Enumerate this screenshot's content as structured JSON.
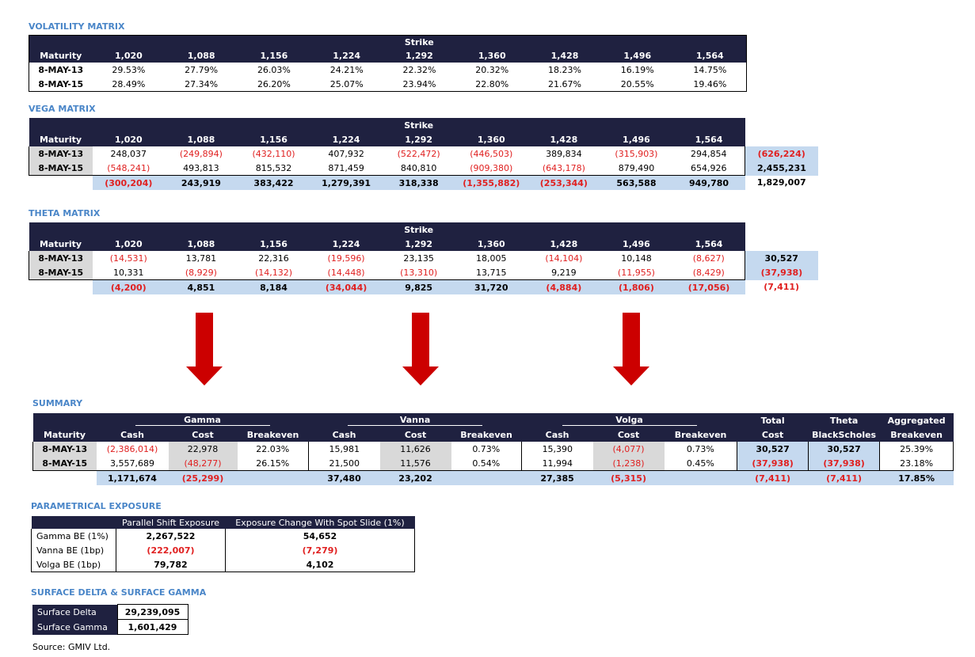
{
  "vol": {
    "title": "VOLATILITY MATRIX",
    "strike_label": "Strike",
    "maturity_label": "Maturity",
    "strikes": [
      "1,020",
      "1,088",
      "1,156",
      "1,224",
      "1,292",
      "1,360",
      "1,428",
      "1,496",
      "1,564"
    ],
    "rows": [
      {
        "label": "8-MAY-13",
        "cells": [
          "29.53%",
          "27.79%",
          "26.03%",
          "24.21%",
          "22.32%",
          "20.32%",
          "18.23%",
          "16.19%",
          "14.75%"
        ]
      },
      {
        "label": "8-MAY-15",
        "cells": [
          "28.49%",
          "27.34%",
          "26.20%",
          "25.07%",
          "23.94%",
          "22.80%",
          "21.67%",
          "20.55%",
          "19.46%"
        ]
      }
    ]
  },
  "vega": {
    "title": "VEGA MATRIX",
    "strike_label": "Strike",
    "maturity_label": "Maturity",
    "strikes": [
      "1,020",
      "1,088",
      "1,156",
      "1,224",
      "1,292",
      "1,360",
      "1,428",
      "1,496",
      "1,564"
    ],
    "rows": [
      {
        "label": "8-MAY-13",
        "cells": [
          "248,037",
          "(249,894)",
          "(432,110)",
          "407,932",
          "(522,472)",
          "(446,503)",
          "389,834",
          "(315,903)",
          "294,854"
        ],
        "total": "(626,224)"
      },
      {
        "label": "8-MAY-15",
        "cells": [
          "(548,241)",
          "493,813",
          "815,532",
          "871,459",
          "840,810",
          "(909,380)",
          "(643,178)",
          "879,490",
          "654,926"
        ],
        "total": "2,455,231"
      }
    ],
    "totals": [
      "(300,204)",
      "243,919",
      "383,422",
      "1,279,391",
      "318,338",
      "(1,355,882)",
      "(253,344)",
      "563,588",
      "949,780"
    ],
    "grand_total": "1,829,007"
  },
  "theta": {
    "title": "THETA MATRIX",
    "strike_label": "Strike",
    "maturity_label": "Maturity",
    "strikes": [
      "1,020",
      "1,088",
      "1,156",
      "1,224",
      "1,292",
      "1,360",
      "1,428",
      "1,496",
      "1,564"
    ],
    "rows": [
      {
        "label": "8-MAY-13",
        "cells": [
          "(14,531)",
          "13,781",
          "22,316",
          "(19,596)",
          "23,135",
          "18,005",
          "(14,104)",
          "10,148",
          "(8,627)"
        ],
        "total": "30,527"
      },
      {
        "label": "8-MAY-15",
        "cells": [
          "10,331",
          "(8,929)",
          "(14,132)",
          "(14,448)",
          "(13,310)",
          "13,715",
          "9,219",
          "(11,955)",
          "(8,429)"
        ],
        "total": "(37,938)"
      }
    ],
    "totals": [
      "(4,200)",
      "4,851",
      "8,184",
      "(34,044)",
      "9,825",
      "31,720",
      "(4,884)",
      "(1,806)",
      "(17,056)"
    ],
    "grand_total": "(7,411)"
  },
  "summary": {
    "title": "SUMMARY",
    "maturity_label": "Maturity",
    "groups": [
      "Gamma",
      "Vanna",
      "Volga"
    ],
    "sub": [
      "Cash",
      "Cost",
      "Breakeven"
    ],
    "extra_headers": [
      [
        "Total",
        "Cost"
      ],
      [
        "Theta",
        "BlackScholes"
      ],
      [
        "Aggregated",
        "Breakeven"
      ]
    ],
    "rows": [
      {
        "label": "8-MAY-13",
        "cells": [
          "(2,386,014)",
          "22,978",
          "22.03%",
          "15,981",
          "11,626",
          "0.73%",
          "15,390",
          "(4,077)",
          "0.73%",
          "30,527",
          "30,527",
          "25.39%"
        ]
      },
      {
        "label": "8-MAY-15",
        "cells": [
          "3,557,689",
          "(48,277)",
          "26.15%",
          "21,500",
          "11,576",
          "0.54%",
          "11,994",
          "(1,238)",
          "0.45%",
          "(37,938)",
          "(37,938)",
          "23.18%"
        ]
      }
    ],
    "totals": [
      "1,171,674",
      "(25,299)",
      "",
      "37,480",
      "23,202",
      "",
      "27,385",
      "(5,315)",
      "",
      "(7,411)",
      "(7,411)",
      "17.85%"
    ]
  },
  "param": {
    "title": "PARAMETRICAL EXPOSURE",
    "headers": [
      "Parallel Shift Exposure",
      "Exposure Change With Spot Slide (1%)"
    ],
    "rows": [
      {
        "label": "Gamma BE (1%)",
        "a": "2,267,522",
        "b": "54,652"
      },
      {
        "label": "Vanna BE (1bp)",
        "a": "(222,007)",
        "b": "(7,279)"
      },
      {
        "label": "Volga BE (1bp)",
        "a": "79,782",
        "b": "4,102"
      }
    ]
  },
  "surface": {
    "title": "SURFACE DELTA & SURFACE GAMMA",
    "rows": [
      {
        "label": "Surface Delta",
        "value": "29,239,095"
      },
      {
        "label": "Surface Gamma",
        "value": "1,601,429"
      }
    ]
  },
  "source": "Source: GMIV Ltd.",
  "colors": {
    "header_bg": "#1f2140",
    "accent_title": "#4a86c8",
    "negative": "#e02020",
    "total_bg": "#c5d9ef",
    "label_bg": "#d9d9d9",
    "arrow": "#cc0000"
  }
}
